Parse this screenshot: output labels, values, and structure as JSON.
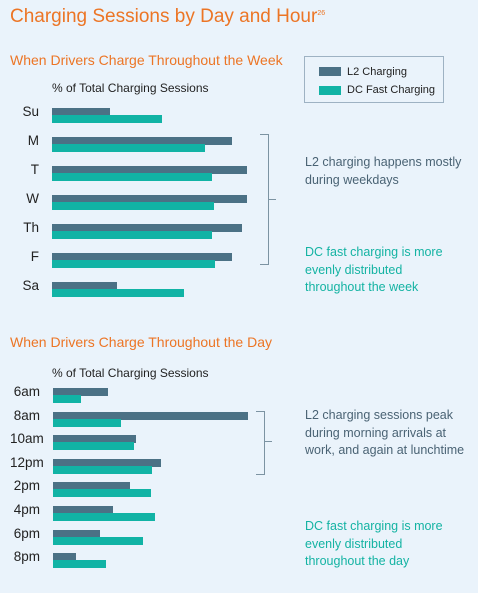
{
  "title": "Charging Sessions by Day and Hour",
  "title_sup": "26",
  "legend": {
    "l2_label": "L2 Charging",
    "dc_label": "DC Fast Charging"
  },
  "colors": {
    "l2": "#4b7185",
    "dc": "#11b3a5",
    "accent": "#ec7525"
  },
  "week": {
    "section_title": "When Drivers Charge Throughout the Week",
    "axis_title": "% of Total Charging Sessions",
    "note_l2": "L2 charging happens mostly during weekdays",
    "note_dc": "DC fast charging is more evenly distributed throughout the week"
  },
  "day": {
    "section_title": "When Drivers Charge Throughout the Day",
    "axis_title": "% of Total Charging Sessions",
    "note_l2": "L2 charging sessions peak during morning arrivals at work, and again at lunchtime",
    "note_dc": "DC fast charging is more evenly distributed throughout the day"
  },
  "chart_data": [
    {
      "type": "bar",
      "orientation": "horizontal",
      "title": "When Drivers Charge Throughout the Week",
      "xlabel": "% of Total Charging Sessions",
      "categories": [
        "Su",
        "M",
        "T",
        "W",
        "Th",
        "F",
        "Sa"
      ],
      "series": [
        {
          "name": "L2 Charging",
          "values": [
            5.8,
            18.0,
            19.5,
            19.5,
            19.0,
            18.0,
            6.5
          ]
        },
        {
          "name": "DC Fast Charging",
          "values": [
            11.0,
            15.3,
            16.0,
            16.2,
            16.0,
            16.3,
            13.2
          ]
        }
      ],
      "xlim": [
        0,
        20
      ],
      "legend": "top-right"
    },
    {
      "type": "bar",
      "orientation": "horizontal",
      "title": "When Drivers Charge Throughout the Day",
      "xlabel": "% of Total Charging Sessions",
      "categories": [
        "6am",
        "8am",
        "10am",
        "12pm",
        "2pm",
        "4pm",
        "6pm",
        "8pm"
      ],
      "series": [
        {
          "name": "L2 Charging",
          "values": [
            5.5,
            19.5,
            8.3,
            10.8,
            7.7,
            6.0,
            4.7,
            2.3
          ]
        },
        {
          "name": "DC Fast Charging",
          "values": [
            2.8,
            6.8,
            8.1,
            9.9,
            9.8,
            10.2,
            9.0,
            5.3
          ]
        }
      ],
      "xlim": [
        0,
        20
      ]
    }
  ]
}
